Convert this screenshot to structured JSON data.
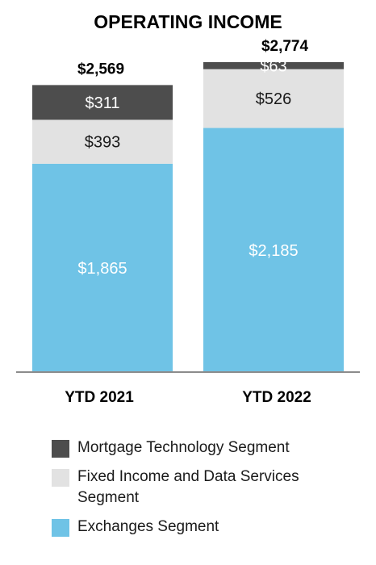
{
  "chart_data": {
    "type": "bar",
    "stacked": true,
    "title": "OPERATING INCOME",
    "categories": [
      "YTD 2021",
      "YTD 2022"
    ],
    "totals": [
      "$2,569",
      "$2,774"
    ],
    "ylim": [
      0,
      2774
    ],
    "grid": false,
    "legend_position": "bottom",
    "series": [
      {
        "name": "Exchanges Segment",
        "values": [
          1865,
          2185
        ],
        "labels": [
          "$1,865",
          "$2,185"
        ],
        "color": "#6fc3e6",
        "label_color": "#ffffff"
      },
      {
        "name": "Fixed Income and Data Services\nSegment",
        "values": [
          393,
          526
        ],
        "labels": [
          "$393",
          "$526"
        ],
        "color": "#e2e2e2",
        "label_color": "#1a1a1a"
      },
      {
        "name": "Mortgage Technology Segment",
        "values": [
          311,
          63
        ],
        "labels": [
          "$311",
          "$63"
        ],
        "color": "#4d4d4d",
        "label_color": "#ffffff"
      }
    ]
  }
}
